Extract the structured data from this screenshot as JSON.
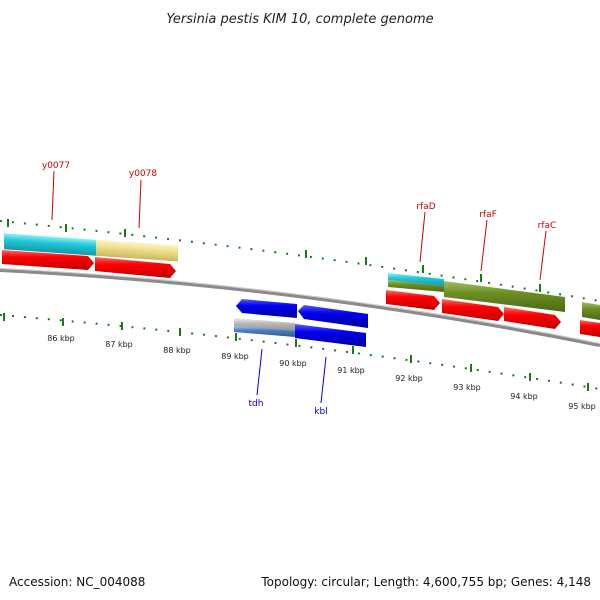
{
  "title": "Yersinia pestis KIM 10, complete genome",
  "footer": {
    "accession": "Accession: NC_004088",
    "summary": "Topology: circular; Length: 4,600,755 bp; Genes: 4,148"
  },
  "scale_labels": [
    "86 kbp",
    "87 kbp",
    "88 kbp",
    "89 kbp",
    "90 kbp",
    "91 kbp",
    "92 kbp",
    "93 kbp",
    "94 kbp",
    "95 kbp"
  ],
  "gene_labels": {
    "y0077": "y0077",
    "y0078": "y0078",
    "rfaD": "rfaD",
    "rfaF": "rfaF",
    "rfaC": "rfaC",
    "tdh": "tdh",
    "kbl": "kbl"
  },
  "colors": {
    "forward_cds": "#ff0000",
    "reverse_cds": "#0000ee",
    "backbone": "#888888",
    "tick": "#1a7a1a",
    "cog_cyan": "#20c8d8",
    "cog_yellow": "#f0e08c",
    "cog_olive": "#6b8e23",
    "cog_gray": "#b8b8b8",
    "cog_steel": "#4a7fc0",
    "label_forward": "#cc0000",
    "label_reverse": "#0000cc"
  }
}
